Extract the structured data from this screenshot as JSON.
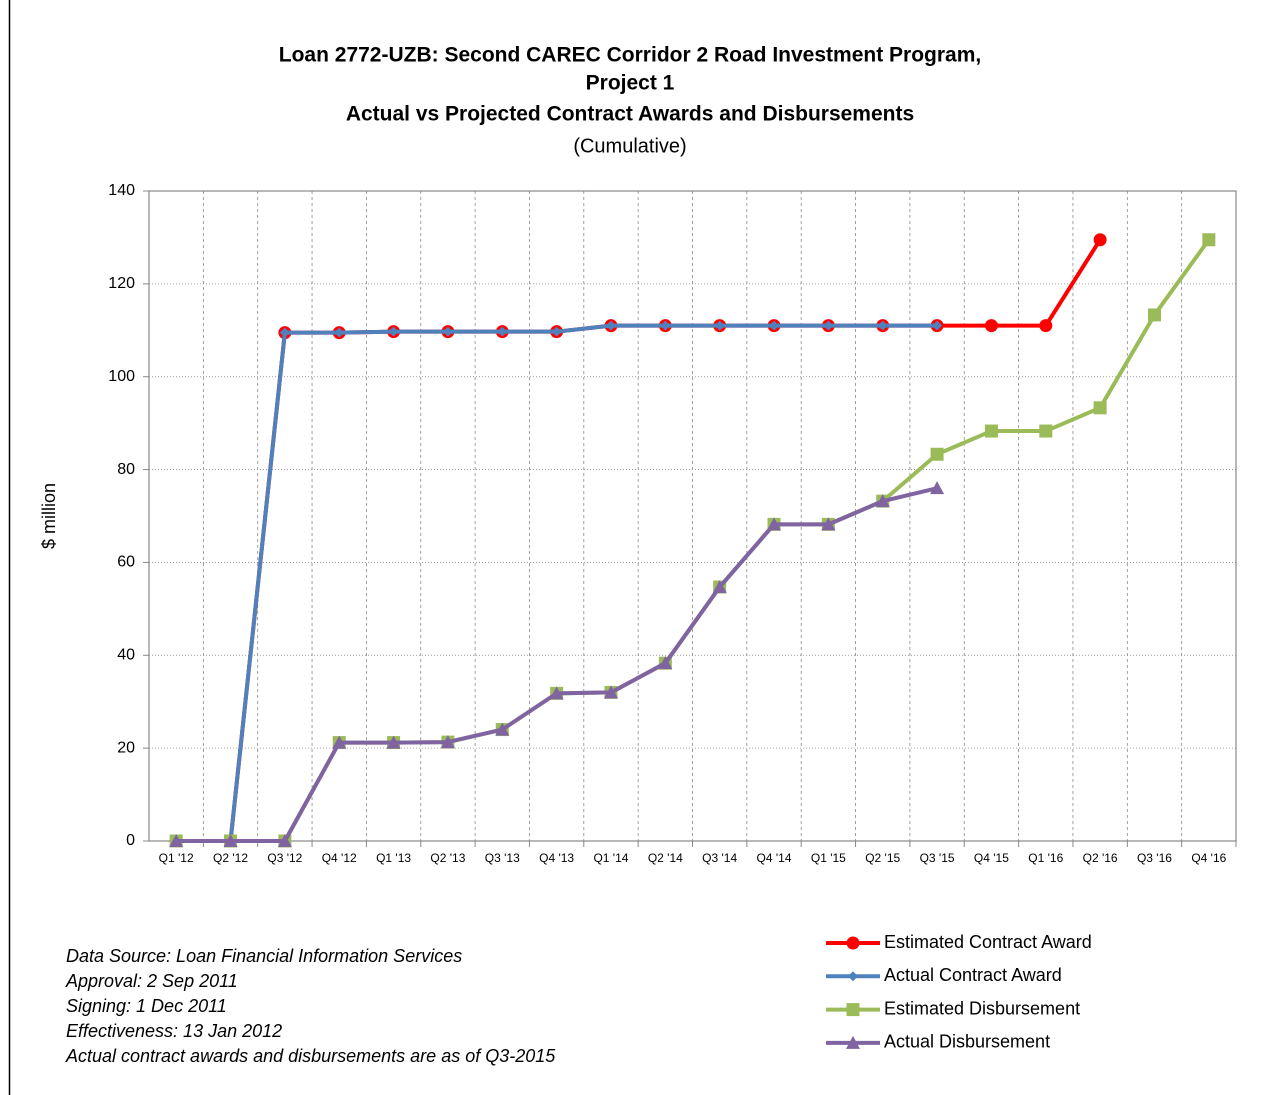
{
  "chart_data": {
    "type": "line",
    "title": [
      "Loan 2772-UZB: Second CAREC Corridor 2 Road Investment Program,",
      "Project 1",
      "Actual vs Projected Contract Awards and Disbursements"
    ],
    "subtitle": "(Cumulative)",
    "y_label": "$ million",
    "categories": [
      "Q1 '12",
      "Q2 '12",
      "Q3 '12",
      "Q4 '12",
      "Q1 '13",
      "Q2 '13",
      "Q3 '13",
      "Q4 '13",
      "Q1 '14",
      "Q2 '14",
      "Q3 '14",
      "Q4 '14",
      "Q1 '15",
      "Q2 '15",
      "Q3 '15",
      "Q4 '15",
      "Q1 '16",
      "Q2 '16",
      "Q3 '16",
      "Q4 '16"
    ],
    "series": [
      {
        "name": "Estimated Contract Award",
        "color": "#ff0000",
        "marker": "circle",
        "values": [
          0,
          0,
          109.5,
          109.5,
          109.7,
          109.7,
          109.7,
          109.7,
          111,
          111,
          111,
          111,
          111,
          111,
          111,
          111,
          111,
          129.5,
          null,
          null
        ]
      },
      {
        "name": "Actual Contract Award",
        "color": "#4f81bd",
        "marker": "diamond",
        "values": [
          0,
          0,
          109.5,
          109.5,
          109.7,
          109.7,
          109.7,
          109.7,
          111,
          111,
          111,
          111,
          111,
          111,
          111,
          null,
          null,
          null,
          null,
          null
        ]
      },
      {
        "name": "Estimated Disbursement",
        "color": "#9bbb59",
        "marker": "square",
        "values": [
          0,
          0,
          0,
          21.2,
          21.2,
          21.3,
          24,
          31.8,
          32,
          38.3,
          54.7,
          68.2,
          68.2,
          73.2,
          83.3,
          88.3,
          88.3,
          93.3,
          113.3,
          129.5
        ]
      },
      {
        "name": "Actual Disbursement",
        "color": "#8064a2",
        "marker": "triangle",
        "values": [
          0,
          0,
          0,
          21.2,
          21.2,
          21.3,
          24,
          31.8,
          32,
          38.3,
          54.7,
          68.2,
          68.2,
          73.2,
          76,
          null,
          null,
          null,
          null,
          null
        ]
      }
    ],
    "ylim": [
      0,
      140
    ],
    "yticks": [
      0,
      20,
      40,
      60,
      80,
      100,
      120,
      140
    ],
    "grid": true,
    "legend": "bottom-right",
    "notes": [
      "Data Source:  Loan Financial Information Services",
      "Approval: 2 Sep 2011",
      "Signing: 1 Dec 2011",
      "Effectiveness: 13 Jan 2012",
      "Actual contract awards and disbursements are as of Q3-2015"
    ]
  }
}
